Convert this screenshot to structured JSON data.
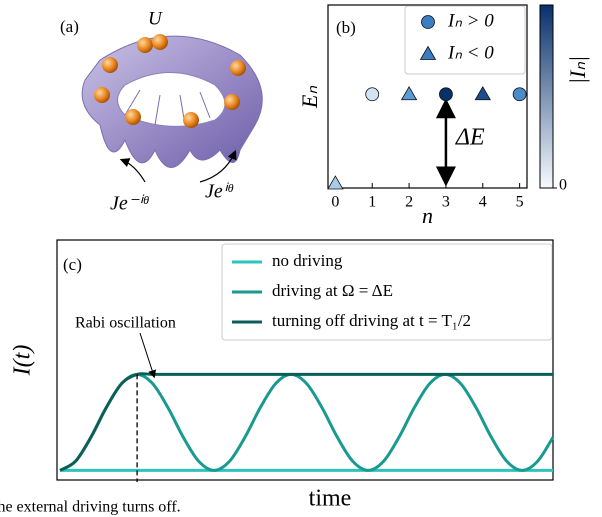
{
  "chart_data": [
    {
      "type": "illustration",
      "panel_label": "(a)",
      "annotations": [
        "U",
        "Je⁻ⁱᶿ",
        "Jeⁱᶿ"
      ]
    },
    {
      "type": "scatter",
      "panel_label": "(b)",
      "xlabel": "n",
      "ylabel": "Eₙ",
      "xlim": [
        -0.2,
        5.2
      ],
      "xticks": [
        0,
        1,
        2,
        3,
        4,
        5
      ],
      "ylim": [
        -0.05,
        2.0
      ],
      "series": [
        {
          "name": "Iₙ > 0",
          "marker": "circle",
          "color": "#3a7dc0",
          "x": [
            1,
            3,
            5
          ],
          "values": [
            1,
            1,
            1
          ],
          "colors": [
            "#d3e3f3",
            "#08306b",
            "#4a8cc8"
          ]
        },
        {
          "name": "Iₙ < 0",
          "marker": "triangle",
          "color": "#3a7dc0",
          "x": [
            0,
            2,
            4
          ],
          "values": [
            0,
            1,
            1
          ],
          "colors": [
            "#a9cbe8",
            "#5b9bd5",
            "#1f4e8c"
          ]
        }
      ],
      "legend": "upper right",
      "colorbar": {
        "label": "|Iₙ|",
        "clim": [
          0,
          1
        ],
        "ticks": [
          0
        ],
        "colors": [
          "#f7fbff",
          "#08306b"
        ]
      },
      "annotation": {
        "text": "ΔE",
        "x": 3,
        "from": 1,
        "to": 0
      }
    },
    {
      "type": "line",
      "panel_label": "(c)",
      "xlabel": "time",
      "ylabel": "I(t)",
      "xlim": [
        -0.2,
        32
      ],
      "ylim": [
        -0.1,
        2.4
      ],
      "x": [
        0,
        1,
        2,
        3,
        4,
        5,
        6,
        7,
        8,
        9,
        10,
        11,
        12,
        13,
        14,
        15,
        16,
        17,
        18,
        19,
        20,
        21,
        22,
        23,
        24,
        25,
        26,
        27,
        28,
        29,
        30,
        31,
        32
      ],
      "series": [
        {
          "name": "no driving",
          "color": "#2cc4bb",
          "values": [
            0,
            0,
            0,
            0,
            0,
            0,
            0,
            0,
            0,
            0,
            0,
            0,
            0,
            0,
            0,
            0,
            0,
            0,
            0,
            0,
            0,
            0,
            0,
            0,
            0,
            0,
            0,
            0,
            0,
            0,
            0,
            0,
            0
          ]
        },
        {
          "name": "driving at Ω = ΔE",
          "color": "#189a90",
          "values": [
            0,
            0.095,
            0.345,
            0.655,
            0.905,
            1,
            0.905,
            0.655,
            0.345,
            0.095,
            0,
            0.095,
            0.345,
            0.655,
            0.905,
            1,
            0.905,
            0.655,
            0.345,
            0.095,
            0,
            0.095,
            0.345,
            0.655,
            0.905,
            1,
            0.905,
            0.655,
            0.345,
            0.095,
            0,
            0.095,
            0.345
          ]
        },
        {
          "name": "turning off driving at t = T₁/2",
          "color": "#0d5e58",
          "values": [
            0,
            0.095,
            0.345,
            0.655,
            0.905,
            1,
            1,
            1,
            1,
            1,
            1,
            1,
            1,
            1,
            1,
            1,
            1,
            1,
            1,
            1,
            1,
            1,
            1,
            1,
            1,
            1,
            1,
            1,
            1,
            1,
            1,
            1,
            1
          ]
        }
      ],
      "legend": "upper right",
      "annotations": [
        {
          "text": "Rabi oscillation",
          "x": 6.1,
          "y": 0.98
        },
        {
          "text": "the external driving turns off.",
          "x": 5,
          "y": 1
        }
      ]
    }
  ]
}
